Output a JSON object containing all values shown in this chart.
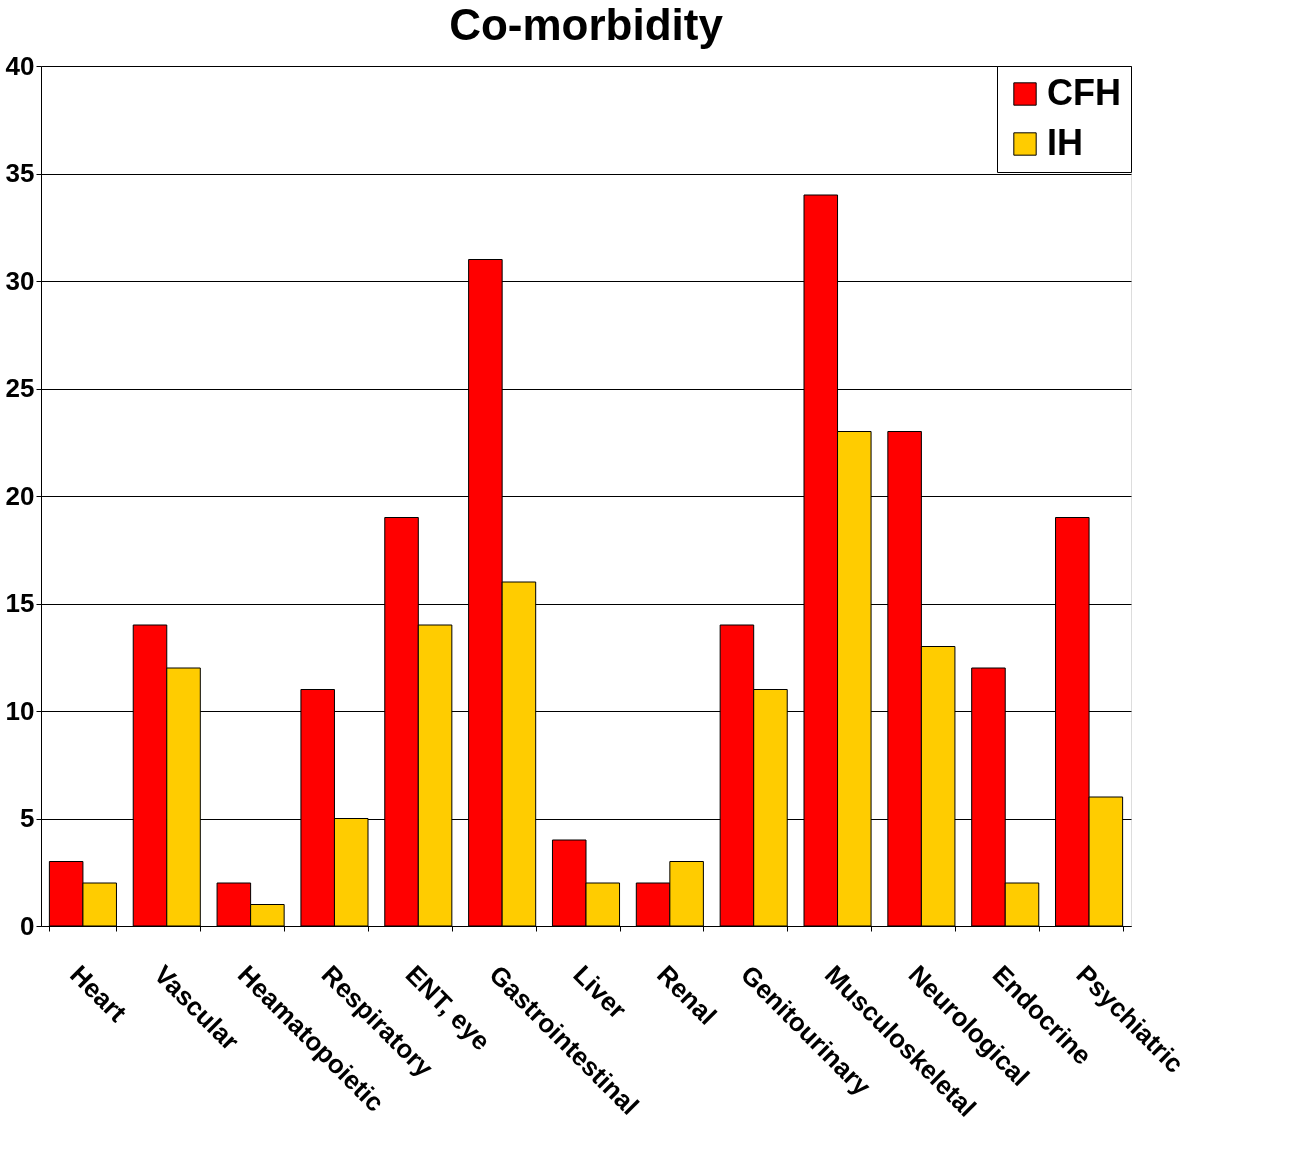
{
  "chart_data": {
    "type": "bar",
    "title": "Co-morbidity",
    "categories": [
      "Heart",
      "Vascular",
      "Heamatopoietic",
      "Respiratory",
      "ENT, eye",
      "Gastrointestinal",
      "Liver",
      "Renal",
      "Genitourinary",
      "Musculoskeletal",
      "Neurological",
      "Endocrine",
      "Psychiatric"
    ],
    "series": [
      {
        "name": "CFH",
        "color": "#ff0000",
        "values": [
          3,
          14,
          2,
          11,
          19,
          31,
          4,
          2,
          14,
          34,
          23,
          12,
          19
        ]
      },
      {
        "name": "IH",
        "color": "#ffcc00",
        "values": [
          2,
          12,
          1,
          5,
          14,
          16,
          2,
          3,
          11,
          23,
          13,
          2,
          6
        ]
      }
    ],
    "ylim": [
      0,
      40
    ],
    "yticks": [
      0,
      5,
      10,
      15,
      20,
      25,
      30,
      35,
      40
    ],
    "grid": "y",
    "legend": "top right"
  }
}
